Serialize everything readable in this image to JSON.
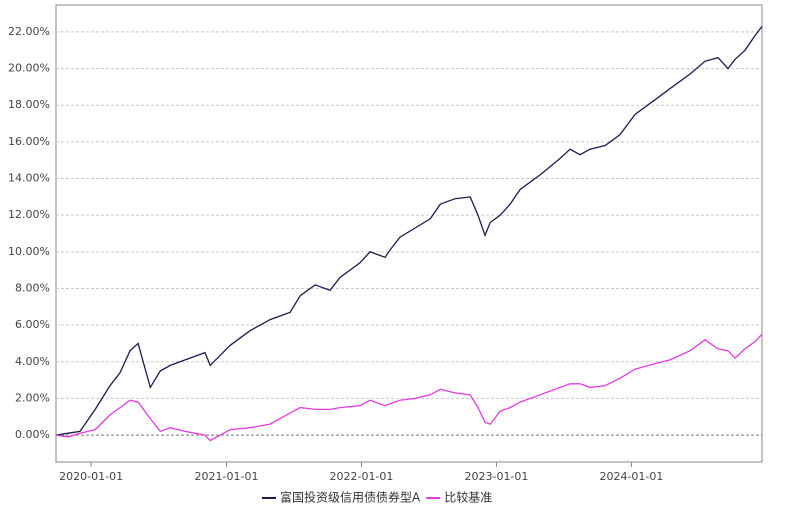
{
  "chart_data": {
    "type": "line",
    "x": [
      "2019-09-28",
      "2019-10-31",
      "2019-12-02",
      "2020-01-12",
      "2020-02-21",
      "2020-03-19",
      "2020-04-15",
      "2020-05-07",
      "2020-06-09",
      "2020-07-06",
      "2020-08-02",
      "2020-09-11",
      "2020-11-04",
      "2020-11-18",
      "2021-01-11",
      "2021-03-06",
      "2021-04-29",
      "2021-06-22",
      "2021-07-19",
      "2021-08-29",
      "2021-10-08",
      "2021-11-04",
      "2021-12-28",
      "2022-01-24",
      "2022-03-06",
      "2022-03-19",
      "2022-04-15",
      "2022-05-26",
      "2022-07-06",
      "2022-08-02",
      "2022-09-11",
      "2022-10-22",
      "2022-11-12",
      "2022-12-01",
      "2022-12-15",
      "2023-01-11",
      "2023-02-07",
      "2023-03-06",
      "2023-04-29",
      "2023-06-22",
      "2023-07-19",
      "2023-08-15",
      "2023-09-11",
      "2023-10-22",
      "2023-12-01",
      "2024-01-11",
      "2024-03-05",
      "2024-04-14",
      "2024-06-07",
      "2024-07-18",
      "2024-08-22",
      "2024-09-18",
      "2024-10-07",
      "2024-11-03",
      "2024-11-30",
      "2024-12-19"
    ],
    "series": [
      {
        "name": "富国投资级信用债债券型A",
        "color": "#1c1c50",
        "values": [
          0.0,
          0.1,
          0.2,
          1.4,
          2.7,
          3.4,
          4.6,
          5.0,
          2.6,
          3.5,
          3.8,
          4.1,
          4.5,
          3.8,
          4.9,
          5.7,
          6.3,
          6.7,
          7.6,
          8.2,
          7.9,
          8.6,
          9.4,
          10.0,
          9.7,
          10.1,
          10.8,
          11.3,
          11.8,
          12.6,
          12.9,
          13.0,
          12.0,
          10.9,
          11.6,
          12.0,
          12.6,
          13.4,
          14.2,
          15.1,
          15.6,
          15.3,
          15.6,
          15.8,
          16.4,
          17.5,
          18.3,
          18.9,
          19.7,
          20.4,
          20.6,
          20.0,
          20.5,
          21.0,
          21.8,
          22.3
        ]
      },
      {
        "name": "比较基准",
        "color": "#e03ce0",
        "values": [
          0.0,
          -0.1,
          0.1,
          0.3,
          1.1,
          1.5,
          1.9,
          1.8,
          0.9,
          0.2,
          0.4,
          0.2,
          0.0,
          -0.3,
          0.3,
          0.4,
          0.6,
          1.2,
          1.5,
          1.4,
          1.4,
          1.5,
          1.6,
          1.9,
          1.6,
          1.7,
          1.9,
          2.0,
          2.2,
          2.5,
          2.3,
          2.2,
          1.5,
          0.7,
          0.6,
          1.3,
          1.5,
          1.8,
          2.2,
          2.6,
          2.8,
          2.8,
          2.6,
          2.7,
          3.1,
          3.6,
          3.9,
          4.1,
          4.6,
          5.2,
          4.7,
          4.6,
          4.2,
          4.7,
          5.1,
          5.5
        ]
      }
    ],
    "xlim": [
      "2019-09-28",
      "2024-12-19"
    ],
    "xticks": [
      "2020-01-01",
      "2021-01-01",
      "2022-01-01",
      "2023-01-01",
      "2024-01-01"
    ],
    "ylim": [
      -1.47,
      23.47
    ],
    "yticks": [
      {
        "value": 0,
        "label": "0.00%"
      },
      {
        "value": 2,
        "label": "2.00%"
      },
      {
        "value": 4,
        "label": "4.00%"
      },
      {
        "value": 6,
        "label": "6.00%"
      },
      {
        "value": 8,
        "label": "8.00%"
      },
      {
        "value": 10,
        "label": "10.00%"
      },
      {
        "value": 12,
        "label": "12.00%"
      },
      {
        "value": 14,
        "label": "14.00%"
      },
      {
        "value": 16,
        "label": "16.00%"
      },
      {
        "value": 18,
        "label": "18.00%"
      },
      {
        "value": 20,
        "label": "20.00%"
      },
      {
        "value": 22,
        "label": "22.00%"
      }
    ],
    "grid": true
  }
}
